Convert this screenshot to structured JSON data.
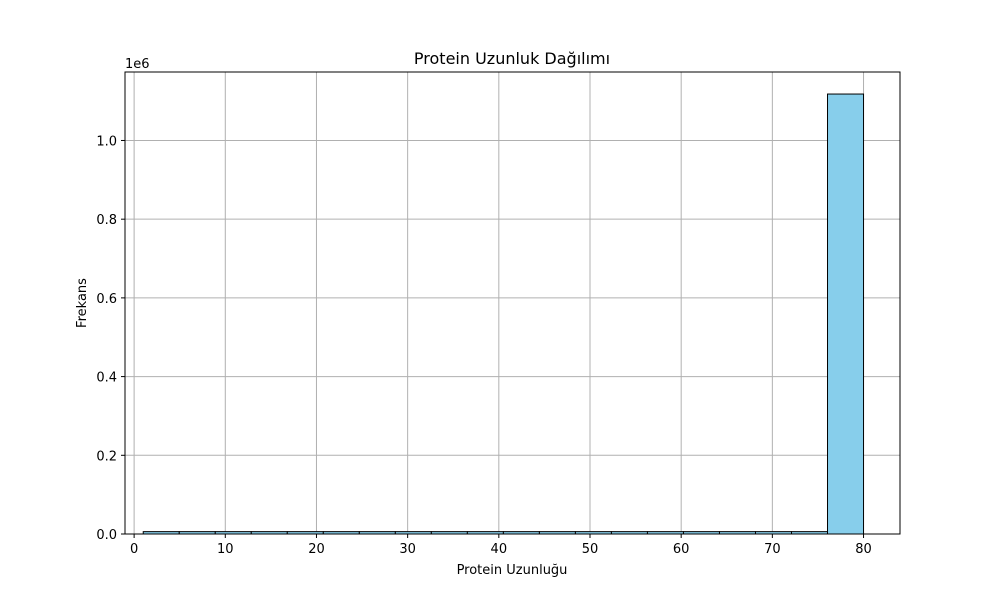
{
  "chart_data": {
    "type": "bar",
    "title": "Protein Uzunluk Dağılımı",
    "xlabel": "Protein Uzunluğu",
    "ylabel": "Frekans",
    "y_offset_label": "1e6",
    "xlim": [
      -1.0,
      84.0
    ],
    "ylim": [
      0,
      1.174
    ],
    "x_ticks": [
      0,
      10,
      20,
      30,
      40,
      50,
      60,
      70,
      80
    ],
    "y_ticks": [
      0.0,
      0.2,
      0.4,
      0.6,
      0.8,
      1.0
    ],
    "x_tick_labels": [
      "0",
      "10",
      "20",
      "30",
      "40",
      "50",
      "60",
      "70",
      "80"
    ],
    "y_tick_labels": [
      "0.0",
      "0.2",
      "0.4",
      "0.6",
      "0.8",
      "1.0"
    ],
    "bin_edges": [
      1.0,
      4.95,
      8.9,
      12.85,
      16.8,
      20.75,
      24.7,
      28.65,
      32.6,
      36.55,
      40.5,
      44.45,
      48.4,
      52.35,
      56.3,
      60.25,
      64.2,
      68.15,
      72.1,
      76.05,
      80.0
    ],
    "values": [
      0.006,
      0.006,
      0.006,
      0.006,
      0.006,
      0.006,
      0.006,
      0.006,
      0.006,
      0.006,
      0.006,
      0.006,
      0.006,
      0.006,
      0.006,
      0.006,
      0.006,
      0.006,
      0.006,
      1.118
    ],
    "bar_color": "#87ceeb",
    "edge_color": "#000000",
    "grid": true
  }
}
